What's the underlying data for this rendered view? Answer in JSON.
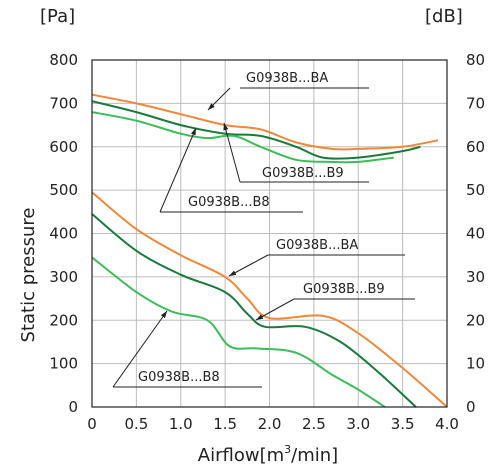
{
  "chart_data": {
    "type": "line",
    "title": "",
    "xlabel": "Airflow",
    "xlabel_unit_prefix": "[m",
    "xlabel_unit_sup": "3",
    "xlabel_unit_suffix": "/min]",
    "ylabel": "Static pressure",
    "y_left_unit": "[Pa]",
    "y_right_unit": "[dB]",
    "xlim": [
      0,
      4.0
    ],
    "ylim": [
      0,
      800
    ],
    "y_right_lim": [
      0,
      80
    ],
    "x_ticks": [
      "0",
      "0.5",
      "1.0",
      "1.5",
      "2.0",
      "2.5",
      "3.0",
      "3.5",
      "4.0"
    ],
    "y_left_ticks": [
      "0",
      "100",
      "200",
      "300",
      "400",
      "500",
      "600",
      "700",
      "800"
    ],
    "y_right_ticks": [
      "0",
      "10",
      "20",
      "30",
      "40",
      "50",
      "60",
      "70",
      "80"
    ],
    "grid": true,
    "colors": {
      "BA": "#f0883a",
      "B9": "#1a7a3c",
      "B8": "#3cbd5a"
    },
    "series": [
      {
        "name": "G0938B...BA",
        "group": "noise",
        "axis": "right",
        "color": "#f0883a",
        "x": [
          0,
          0.5,
          1.0,
          1.5,
          1.9,
          2.3,
          2.7,
          3.0,
          3.5,
          3.9
        ],
        "y": [
          72,
          70,
          67.5,
          65,
          64,
          61,
          59.5,
          59.5,
          60,
          61.5
        ]
      },
      {
        "name": "G0938B...B9",
        "group": "noise",
        "axis": "right",
        "color": "#1a7a3c",
        "x": [
          0,
          0.5,
          1.0,
          1.5,
          1.9,
          2.3,
          2.6,
          3.0,
          3.5,
          3.7
        ],
        "y": [
          70.5,
          68,
          65,
          63,
          62.5,
          60,
          57.5,
          57.5,
          59,
          60
        ]
      },
      {
        "name": "G0938B...B8",
        "group": "noise",
        "axis": "right",
        "color": "#3cbd5a",
        "x": [
          0,
          0.5,
          1.0,
          1.3,
          1.6,
          1.9,
          2.3,
          2.7,
          3.0,
          3.4
        ],
        "y": [
          68,
          66,
          63,
          62,
          62.5,
          60,
          57,
          56.5,
          56.5,
          57.5
        ]
      },
      {
        "name": "G0938B...BA",
        "group": "pressure",
        "axis": "left",
        "color": "#f0883a",
        "x": [
          0,
          0.5,
          1.0,
          1.5,
          1.75,
          2.0,
          2.6,
          3.0,
          3.5,
          4.0
        ],
        "y": [
          495,
          410,
          350,
          300,
          250,
          205,
          210,
          170,
          90,
          0
        ]
      },
      {
        "name": "G0938B...B9",
        "group": "pressure",
        "axis": "left",
        "color": "#1a7a3c",
        "x": [
          0,
          0.5,
          1.0,
          1.5,
          1.75,
          1.95,
          2.4,
          2.8,
          3.2,
          3.65
        ],
        "y": [
          445,
          360,
          305,
          265,
          215,
          185,
          185,
          150,
          85,
          0
        ]
      },
      {
        "name": "G0938B...B8",
        "group": "pressure",
        "axis": "left",
        "color": "#3cbd5a",
        "x": [
          0,
          0.5,
          0.9,
          1.3,
          1.55,
          1.85,
          2.3,
          2.7,
          3.0,
          3.3
        ],
        "y": [
          345,
          265,
          220,
          200,
          140,
          135,
          125,
          75,
          40,
          0
        ]
      }
    ],
    "annotations": [
      {
        "text": "G0938B...BA",
        "group": "noise"
      },
      {
        "text": "G0938B...B9",
        "group": "noise"
      },
      {
        "text": "G0938B...B8",
        "group": "noise"
      },
      {
        "text": "G0938B...BA",
        "group": "pressure"
      },
      {
        "text": "G0938B...B9",
        "group": "pressure"
      },
      {
        "text": "G0938B...B8",
        "group": "pressure"
      }
    ]
  }
}
